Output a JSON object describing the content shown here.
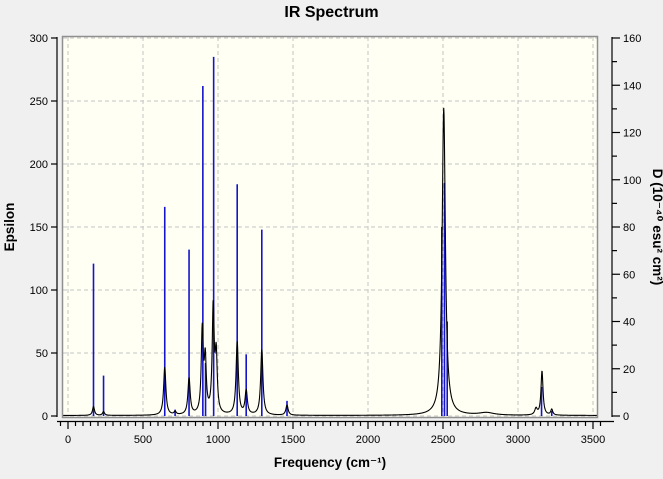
{
  "chart_data": {
    "type": "line+stick",
    "title": "IR Spectrum",
    "xlabel": "Frequency (cm⁻¹)",
    "ylabel_left": "Epsilon",
    "ylabel_right": "D (10⁻⁴⁰ esu² cm²)",
    "grid": {
      "style": "dashed",
      "color": "#c6c6c6"
    },
    "plot_bg": "#fffff4",
    "outer_bg": "#f0f0f0",
    "frame_color": "#8f8f8f",
    "x_axis": {
      "min": 0,
      "max": 3500,
      "major_step": 500,
      "minor_step": 50,
      "tick_labels": [
        "0",
        "500",
        "1000",
        "1500",
        "2000",
        "2500",
        "3000",
        "3500"
      ],
      "tick_values": [
        0,
        500,
        1000,
        1500,
        2000,
        2500,
        3000,
        3500
      ]
    },
    "left_axis": {
      "min": 0,
      "max": 300,
      "major_step": 50,
      "tick_labels": [
        "0",
        "50",
        "100",
        "150",
        "200",
        "250",
        "300"
      ],
      "tick_values": [
        0,
        50,
        100,
        150,
        200,
        250,
        300
      ]
    },
    "right_axis": {
      "min": 0,
      "max": 160,
      "major_step": 20,
      "minor_step": 10,
      "tick_labels": [
        "0",
        "20",
        "40",
        "60",
        "80",
        "100",
        "120",
        "140",
        "160"
      ],
      "tick_values": [
        0,
        20,
        40,
        60,
        80,
        100,
        120,
        140,
        160
      ]
    },
    "stick_series": {
      "name": "dipole-strength-sticks",
      "axis": "right",
      "color": "#1414cc",
      "points": [
        {
          "freq": 170,
          "D": 64.5
        },
        {
          "freq": 237,
          "D": 17.1
        },
        {
          "freq": 645,
          "D": 88.5
        },
        {
          "freq": 714,
          "D": 2.7
        },
        {
          "freq": 807,
          "D": 70.4
        },
        {
          "freq": 899,
          "D": 139.7
        },
        {
          "freq": 917,
          "D": 22.4
        },
        {
          "freq": 971,
          "D": 152.0
        },
        {
          "freq": 1128,
          "D": 98.1
        },
        {
          "freq": 1188,
          "D": 26.1
        },
        {
          "freq": 1292,
          "D": 78.9
        },
        {
          "freq": 1460,
          "D": 6.4
        },
        {
          "freq": 2492,
          "D": 80.0
        },
        {
          "freq": 2510,
          "D": 98.7
        },
        {
          "freq": 2528,
          "D": 40.0
        },
        {
          "freq": 3157,
          "D": 12.3
        },
        {
          "freq": 3225,
          "D": 2.1
        }
      ]
    },
    "curve_series": {
      "name": "epsilon-curve",
      "axis": "left",
      "color": "#000000",
      "baseline_epsilon": 0.4,
      "peaks": [
        {
          "freq": 170,
          "epsilon": 7,
          "hwhm": 8
        },
        {
          "freq": 237,
          "epsilon": 3,
          "hwhm": 8
        },
        {
          "freq": 645,
          "epsilon": 38,
          "hwhm": 9
        },
        {
          "freq": 714,
          "epsilon": 2.5,
          "hwhm": 8
        },
        {
          "freq": 807,
          "epsilon": 29,
          "hwhm": 9
        },
        {
          "freq": 895,
          "epsilon": 66,
          "hwhm": 8
        },
        {
          "freq": 915,
          "epsilon": 42,
          "hwhm": 8
        },
        {
          "freq": 968,
          "epsilon": 84,
          "hwhm": 8
        },
        {
          "freq": 988,
          "epsilon": 45,
          "hwhm": 8
        },
        {
          "freq": 1128,
          "epsilon": 58,
          "hwhm": 9
        },
        {
          "freq": 1188,
          "epsilon": 19,
          "hwhm": 9
        },
        {
          "freq": 1292,
          "epsilon": 52,
          "hwhm": 9
        },
        {
          "freq": 1460,
          "epsilon": 8,
          "hwhm": 9
        },
        {
          "freq": 2505,
          "epsilon": 244,
          "hwhm": 13
        },
        {
          "freq": 2790,
          "epsilon": 2,
          "hwhm": 60
        },
        {
          "freq": 3120,
          "epsilon": 5,
          "hwhm": 10
        },
        {
          "freq": 3160,
          "epsilon": 35,
          "hwhm": 8
        },
        {
          "freq": 3225,
          "epsilon": 4.5,
          "hwhm": 8
        }
      ]
    }
  }
}
